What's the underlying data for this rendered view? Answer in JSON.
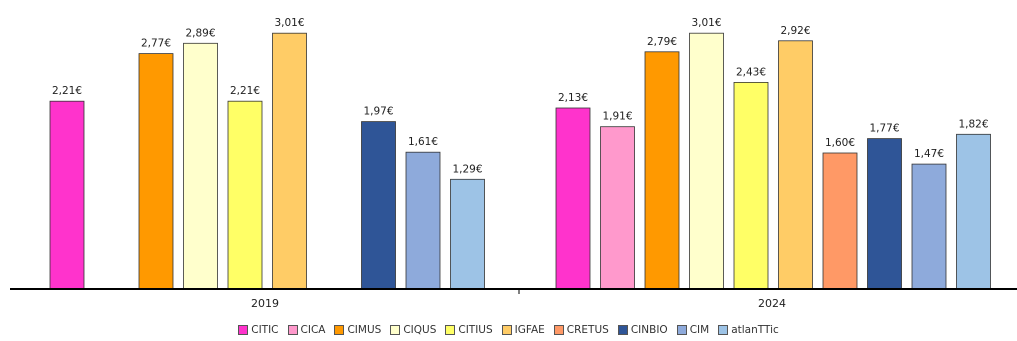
{
  "chart_data": {
    "type": "bar",
    "categories": [
      "2019",
      "2024"
    ],
    "ylim": [
      0,
      3.3
    ],
    "value_suffix": "€",
    "series": [
      {
        "name": "CITIC",
        "color": "#ff33cc",
        "values": [
          2.21,
          2.13
        ],
        "labels": [
          "2,21€",
          "2,13€"
        ]
      },
      {
        "name": "CICA",
        "color": "#ff99cc",
        "values": [
          null,
          1.91
        ],
        "labels": [
          "",
          "1,91€"
        ]
      },
      {
        "name": "CIMUS",
        "color": "#ff9900",
        "values": [
          2.77,
          2.79
        ],
        "labels": [
          "2,77€",
          "2,79€"
        ]
      },
      {
        "name": "CIQUS",
        "color": "#ffffcc",
        "values": [
          2.89,
          3.01
        ],
        "labels": [
          "2,89€",
          "3,01€"
        ]
      },
      {
        "name": "CITIUS",
        "color": "#ffff66",
        "values": [
          2.21,
          2.43
        ],
        "labels": [
          "2,21€",
          "2,43€"
        ]
      },
      {
        "name": "IGFAE",
        "color": "#ffcc66",
        "values": [
          3.01,
          2.92
        ],
        "labels": [
          "3,01€",
          "2,92€"
        ]
      },
      {
        "name": "CRETUS",
        "color": "#ff9966",
        "values": [
          null,
          1.6
        ],
        "labels": [
          "",
          "1,60€"
        ]
      },
      {
        "name": "CINBIO",
        "color": "#2f5597",
        "values": [
          1.97,
          1.77
        ],
        "labels": [
          "1,97€",
          "1,77€"
        ]
      },
      {
        "name": "CIM",
        "color": "#8eaadb",
        "values": [
          1.61,
          1.47
        ],
        "labels": [
          "1,61€",
          "1,47€"
        ]
      },
      {
        "name": "atlanTTic",
        "color": "#9dc3e6",
        "values": [
          1.29,
          1.82
        ],
        "labels": [
          "1,29€",
          "1,82€"
        ]
      }
    ],
    "legend_position": "bottom",
    "grid": false
  }
}
